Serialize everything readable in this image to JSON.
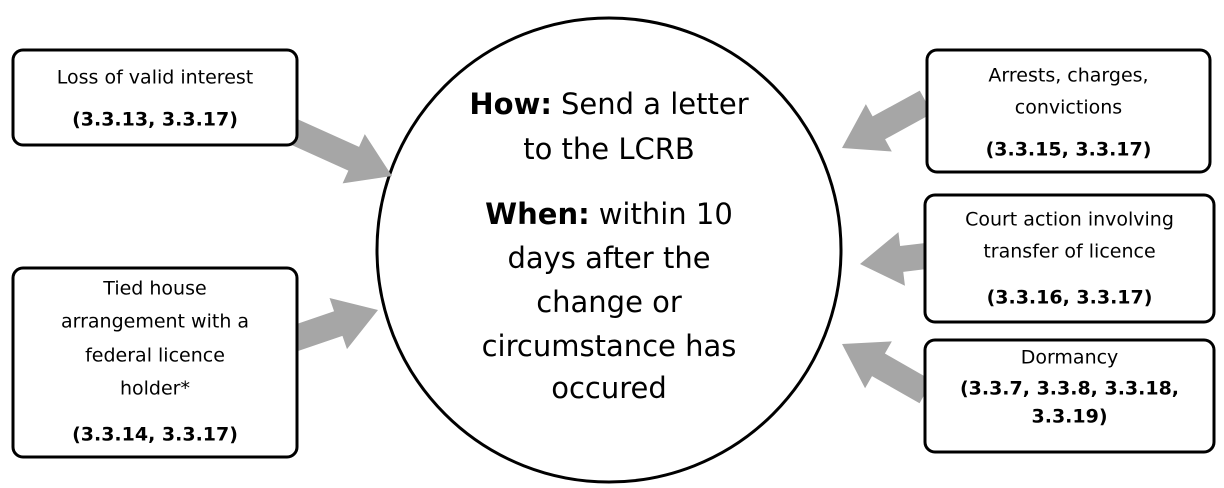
{
  "center": {
    "how": {
      "label": "How:",
      "lines": [
        "Send a letter",
        "to the LCRB"
      ]
    },
    "when": {
      "label": "When:",
      "lines": [
        "within 10",
        "days after the",
        "change or",
        "circumstance has",
        "occured"
      ]
    }
  },
  "boxes": [
    {
      "lines": [
        "Loss of valid interest"
      ],
      "refs": [
        "(3.3.13, 3.3.17)"
      ]
    },
    {
      "lines": [
        "Tied house",
        "arrangement with a",
        "federal licence",
        "holder*"
      ],
      "refs": [
        "(3.3.14, 3.3.17)"
      ]
    },
    {
      "lines": [
        "Arrests, charges,",
        "convictions"
      ],
      "refs": [
        "(3.3.15, 3.3.17)"
      ]
    },
    {
      "lines": [
        "Court action involving",
        "transfer of licence"
      ],
      "refs": [
        "(3.3.16, 3.3.17)"
      ]
    },
    {
      "lines": [
        "Dormancy"
      ],
      "refs": [
        "(3.3.7, 3.3.8, 3.3.18,",
        "3.3.19)"
      ]
    }
  ]
}
